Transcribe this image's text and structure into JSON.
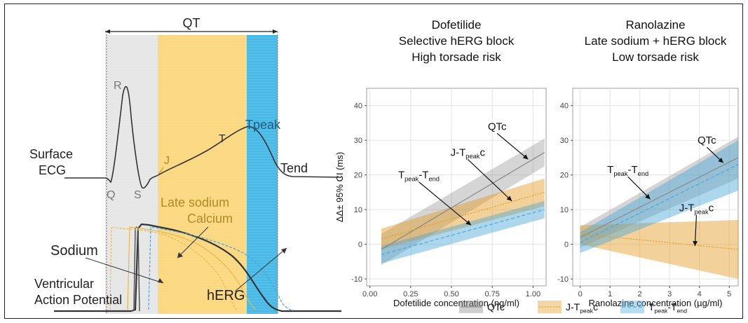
{
  "ecg_diagram": {
    "qt_label": "QT",
    "r_label": "R",
    "q_label": "Q",
    "s_label": "S",
    "j_label": "J",
    "t_label": "T",
    "tpeak_label": "Tpeak",
    "tend_label": "Tend",
    "surface_ecg_label_1": "Surface",
    "surface_ecg_label_2": "ECG",
    "late_sodium_label": "Late sodium",
    "calcium_label": "Calcium",
    "sodium_label": "Sodium",
    "herg_label": "hERG",
    "ventricular_label_1": "Ventricular",
    "ventricular_label_2": "Action Potential",
    "colors": {
      "qrs_band": "#e6e6e6",
      "st_band": "#fbd77e",
      "tpeak_band": "#46b9e6",
      "curve": "#333333",
      "calcium": "#e8b84a",
      "herg_dash": "#4aa7d8"
    }
  },
  "chart_data": [
    {
      "type": "line",
      "title": [
        "Dofetilide",
        "Selective hERG block",
        "High torsade risk"
      ],
      "xlabel": "Dofetilide concentration (ng/ml)",
      "ylabel": "ΔΔ± 95% CI (ms)",
      "xlim": [
        -0.02,
        1.08
      ],
      "ylim": [
        -12,
        45
      ],
      "xticks": [
        0.0,
        0.25,
        0.5,
        0.75,
        1.0
      ],
      "xtick_labels": [
        "0.00",
        "0.25",
        "0.50",
        "0.75",
        "1.00"
      ],
      "yticks": [
        -10,
        0,
        10,
        20,
        30,
        40
      ],
      "ytick_labels": [
        "-10",
        "0",
        "10",
        "20",
        "30",
        "40"
      ],
      "grid": true,
      "series": [
        {
          "name": "QTc",
          "color": "#888888",
          "dash": "solid",
          "x": [
            0.07,
            1.07
          ],
          "y": [
            -1.5,
            26.5
          ],
          "lower": [
            -6,
            22.5
          ],
          "upper": [
            3,
            30.5
          ]
        },
        {
          "name": "J-TpeakC",
          "color": "#e59a1e",
          "dash": "dotted",
          "x": [
            0.07,
            1.07
          ],
          "y": [
            1.5,
            15
          ],
          "lower": [
            -1.5,
            11
          ],
          "upper": [
            4.5,
            19
          ]
        },
        {
          "name": "Tpeak-Tend",
          "color": "#4aa7d8",
          "dash": "dashed",
          "x": [
            0.07,
            1.07
          ],
          "y": [
            -3,
            10
          ],
          "lower": [
            -5.5,
            7.5
          ],
          "upper": [
            -0.5,
            12.5
          ]
        }
      ],
      "annotations": [
        {
          "label": "QTc",
          "tx": 0.78,
          "ty": 33,
          "ax": 0.97,
          "ay": 24.5
        },
        {
          "label": "J-TpeakC",
          "tx": 0.6,
          "ty": 25.5,
          "ax": 0.87,
          "ay": 12.5
        },
        {
          "label": "Tpeak-Tend",
          "tx": 0.3,
          "ty": 19,
          "ax": 0.62,
          "ay": 5.5
        }
      ]
    },
    {
      "type": "line",
      "title": [
        "Ranolazine",
        "Late sodium + hERG block",
        "Low torsade risk"
      ],
      "xlabel": "Ranolazine concentration (µg/ml)",
      "ylabel": "",
      "xlim": [
        -0.25,
        5.3
      ],
      "ylim": [
        -12,
        45
      ],
      "xticks": [
        0,
        1,
        2,
        3,
        4,
        5
      ],
      "xtick_labels": [
        "0",
        "1",
        "2",
        "3",
        "4",
        "5"
      ],
      "yticks": [
        -10,
        0,
        10,
        20,
        30,
        40
      ],
      "ytick_labels": [
        "-10",
        "0",
        "10",
        "20",
        "30",
        "40"
      ],
      "grid": true,
      "series": [
        {
          "name": "QTc",
          "color": "#888888",
          "dash": "solid",
          "x": [
            0.0,
            5.3
          ],
          "y": [
            2,
            25
          ],
          "lower": [
            -1,
            19
          ],
          "upper": [
            5,
            31
          ]
        },
        {
          "name": "J-TpeakC",
          "color": "#e59a1e",
          "dash": "dotted",
          "x": [
            0.0,
            5.3
          ],
          "y": [
            3,
            -1.5
          ],
          "lower": [
            0,
            -10
          ],
          "upper": [
            5.5,
            7
          ]
        },
        {
          "name": "Tpeak-Tend",
          "color": "#4aa7d8",
          "dash": "dashed",
          "x": [
            0.0,
            5.3
          ],
          "y": [
            0.5,
            23
          ],
          "lower": [
            -2.5,
            15.5
          ],
          "upper": [
            3.5,
            30
          ]
        }
      ],
      "annotations": [
        {
          "label": "QTc",
          "tx": 4.25,
          "ty": 29,
          "ax": 4.8,
          "ay": 23.5
        },
        {
          "label": "Tpeak-Tend",
          "tx": 1.6,
          "ty": 20.5,
          "ax": 2.35,
          "ay": 13
        },
        {
          "label": "J-TpeakC",
          "tx": 3.9,
          "ty": 9.5,
          "ax": 3.85,
          "ay": -0.5
        }
      ]
    }
  ],
  "legend": {
    "items": [
      {
        "label": "QTc",
        "color": "#888888",
        "dash": "solid"
      },
      {
        "label": "J-TpeakC",
        "color": "#e59a1e",
        "dash": "dotted"
      },
      {
        "label": "Tpeak-Tend",
        "color": "#4aa7d8",
        "dash": "dashed"
      }
    ]
  }
}
